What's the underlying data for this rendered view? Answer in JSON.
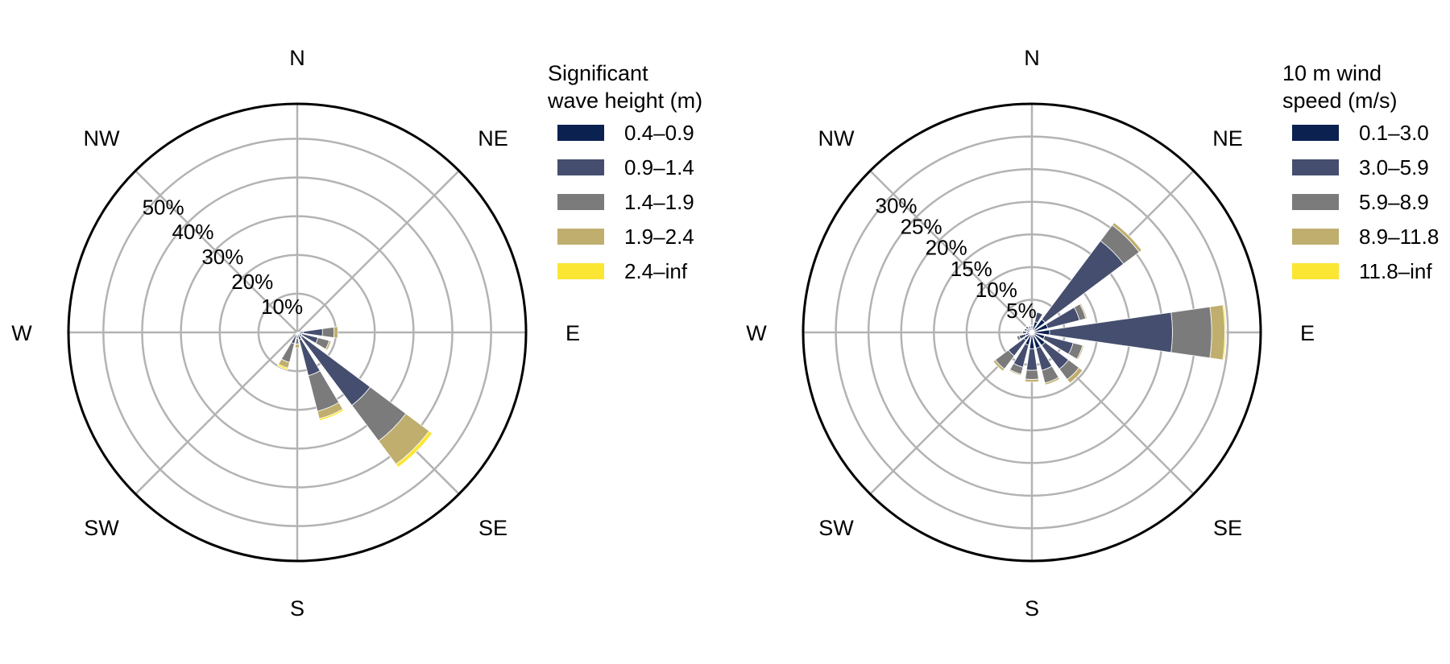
{
  "chart_data": [
    {
      "type": "rose",
      "directions": [
        "N",
        "NE",
        "E",
        "SE",
        "S",
        "SW",
        "W",
        "NW"
      ],
      "sector_centers_deg": [
        0,
        22.5,
        45,
        67.5,
        90,
        112.5,
        135,
        157.5,
        180,
        202.5,
        225,
        247.5,
        270,
        292.5,
        315,
        337.5
      ],
      "radial_ticks": [
        "10%",
        "20%",
        "30%",
        "40%",
        "50%"
      ],
      "radial_tick_values": [
        10,
        20,
        30,
        40,
        50
      ],
      "rmax": 59,
      "legend_title_lines": [
        "Significant",
        "wave height (m)"
      ],
      "legend_position": "right",
      "bins": [
        "0.4–0.9",
        "0.9–1.4",
        "1.4–1.9",
        "1.9–2.4",
        "2.4–inf"
      ],
      "colors": [
        "#0b2150",
        "#454e6e",
        "#7b7b7b",
        "#bfae6e",
        "#fae633"
      ],
      "sectors": [
        {
          "dir": 90,
          "cum": [
            1.5,
            6.5,
            9.5,
            10.5,
            10.5
          ]
        },
        {
          "dir": 112.5,
          "cum": [
            1.2,
            5.5,
            8.5,
            9.0,
            9.0
          ]
        },
        {
          "dir": 135,
          "cum": [
            1.5,
            23.5,
            35.0,
            42.5,
            43.5
          ]
        },
        {
          "dir": 157.5,
          "cum": [
            2.0,
            11.5,
            21.0,
            23.0,
            23.5
          ]
        },
        {
          "dir": 180,
          "cum": [
            0.3,
            1.5,
            3.0,
            4.0,
            4.0
          ]
        },
        {
          "dir": 202.5,
          "cum": [
            0.5,
            3.0,
            8.0,
            9.5,
            10.0
          ]
        },
        {
          "dir": 225,
          "cum": [
            0.1,
            0.3,
            0.5,
            0.6,
            0.6
          ]
        }
      ]
    },
    {
      "type": "rose",
      "directions": [
        "N",
        "NE",
        "E",
        "SE",
        "S",
        "SW",
        "W",
        "NW"
      ],
      "sector_centers_deg": [
        0,
        22.5,
        45,
        67.5,
        90,
        112.5,
        135,
        157.5,
        180,
        202.5,
        225,
        247.5,
        270,
        292.5,
        315,
        337.5
      ],
      "radial_ticks": [
        "5%",
        "10%",
        "15%",
        "20%",
        "25%",
        "30%"
      ],
      "radial_tick_values": [
        5,
        10,
        15,
        20,
        25,
        30
      ],
      "rmax": 35,
      "legend_title_lines": [
        "10 m wind",
        "speed (m/s)"
      ],
      "legend_position": "right",
      "bins": [
        "0.1–3.0",
        "3.0–5.9",
        "5.9–8.9",
        "8.9–11.8",
        "11.8–inf"
      ],
      "colors": [
        "#0b2150",
        "#454e6e",
        "#7b7b7b",
        "#bfae6e",
        "#fae633"
      ],
      "sectors": [
        {
          "dir": 0,
          "cum": [
            0.6,
            1.0,
            1.1,
            1.1,
            1.1
          ]
        },
        {
          "dir": 22.5,
          "cum": [
            1.7,
            3.2,
            3.3,
            3.3,
            3.3
          ]
        },
        {
          "dir": 45,
          "cum": [
            2.5,
            17.5,
            20.5,
            21.0,
            21.0
          ]
        },
        {
          "dir": 67.5,
          "cum": [
            2.5,
            7.5,
            8.5,
            8.7,
            8.7
          ]
        },
        {
          "dir": 90,
          "cum": [
            2.7,
            21.5,
            27.5,
            29.5,
            29.7
          ]
        },
        {
          "dir": 112.5,
          "cum": [
            2.0,
            6.5,
            8.0,
            8.2,
            8.2
          ]
        },
        {
          "dir": 135,
          "cum": [
            2.5,
            7.0,
            9.0,
            9.7,
            9.7
          ]
        },
        {
          "dir": 157.5,
          "cum": [
            2.5,
            6.0,
            8.0,
            8.3,
            8.3
          ]
        },
        {
          "dir": 180,
          "cum": [
            2.5,
            5.8,
            7.2,
            7.6,
            7.6
          ]
        },
        {
          "dir": 202.5,
          "cum": [
            2.0,
            5.5,
            6.6,
            6.8,
            6.8
          ]
        },
        {
          "dir": 225,
          "cum": [
            1.5,
            4.5,
            7.0,
            7.4,
            7.4
          ]
        },
        {
          "dir": 247.5,
          "cum": [
            1.0,
            2.0,
            2.4,
            2.4,
            2.4
          ]
        },
        {
          "dir": 270,
          "cum": [
            0.8,
            1.4,
            1.6,
            1.6,
            1.6
          ]
        },
        {
          "dir": 292.5,
          "cum": [
            0.8,
            1.2,
            1.3,
            1.3,
            1.3
          ]
        },
        {
          "dir": 315,
          "cum": [
            0.8,
            1.2,
            1.3,
            1.3,
            1.3
          ]
        },
        {
          "dir": 337.5,
          "cum": [
            0.7,
            1.0,
            1.1,
            1.1,
            1.1
          ]
        }
      ]
    }
  ]
}
